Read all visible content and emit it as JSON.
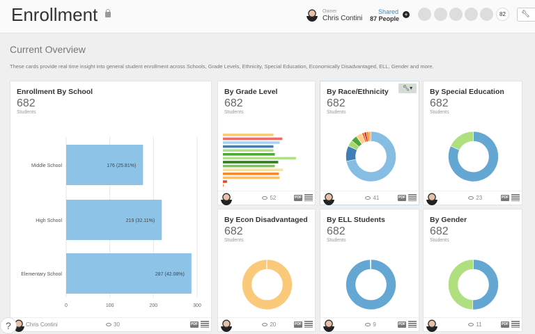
{
  "header": {
    "title": "Enrollment",
    "owner_label": "Owner",
    "owner_name": "Chris Contini",
    "shared_label": "Shared",
    "shared_count": "87 People",
    "member_count": "82",
    "tools_icon": "wrench-icon"
  },
  "section": {
    "title": "Current Overview",
    "description": "These cards provide real time insight into general student enrollment across Schools, Grade Levels, Ethnicity, Special Education, Economically Disadvantaged, ELL, Gender and more."
  },
  "cards": [
    {
      "title": "Enrollment By School",
      "count": "682",
      "unit": "Students",
      "author": "Chris Contini",
      "views": "30"
    },
    {
      "title": "By Grade Level",
      "count": "682",
      "unit": "Students",
      "views": "52"
    },
    {
      "title": "By Race/Ethnicity",
      "count": "682",
      "unit": "Students",
      "views": "41"
    },
    {
      "title": "By Special Education",
      "count": "682",
      "unit": "Students",
      "views": "23"
    },
    {
      "title": "By Econ Disadvantaged",
      "count": "682",
      "unit": "Students",
      "views": "20"
    },
    {
      "title": "By ELL Students",
      "count": "682",
      "unit": "Students",
      "views": "9"
    },
    {
      "title": "By Gender",
      "count": "682",
      "unit": "Students",
      "views": "11"
    }
  ],
  "pdf_label": "PDF",
  "help_label": "?",
  "chart_data": [
    {
      "type": "bar",
      "orientation": "horizontal",
      "categories": [
        "Middle School",
        "High School",
        "Elementary School"
      ],
      "values": [
        176,
        219,
        287
      ],
      "data_labels": [
        "176  (25.81%)",
        "219  (32.11%)",
        "287  (42.08%)"
      ],
      "xlim": [
        0,
        300
      ],
      "xticks": [
        "0",
        "100",
        "200",
        "300"
      ],
      "color": "#8ec3e8",
      "grid": true
    },
    {
      "type": "bar",
      "orientation": "horizontal",
      "values": [
        74,
        87,
        83,
        74,
        74,
        76,
        107,
        81,
        76,
        88,
        82,
        83,
        6,
        1
      ],
      "colors": [
        "#f9c97a",
        "#ef6b6b",
        "#a9d3f2",
        "#3e7fb8",
        "#b2df8a",
        "#4ea83a",
        "#b2df8a",
        "#2e7d1e",
        "#7cc55a",
        "#fbe29a",
        "#f58a2a",
        "#fbbf70",
        "#e24a26",
        "#f58a2a"
      ]
    },
    {
      "type": "pie",
      "donut": true,
      "values": [
        72,
        10,
        4,
        4,
        4,
        1.5,
        1.5,
        1.5,
        1.5
      ],
      "colors": [
        "#86bde3",
        "#3e7fb8",
        "#a6d96a",
        "#4ea83a",
        "#fdd18a",
        "#ef6b3a",
        "#d7301f",
        "#f58a2a",
        "#fdae61"
      ]
    },
    {
      "type": "pie",
      "donut": true,
      "values": [
        82,
        18
      ],
      "colors": [
        "#65a7d3",
        "#b0df80"
      ]
    },
    {
      "type": "pie",
      "donut": true,
      "values": [
        99.5,
        0.5
      ],
      "colors": [
        "#fbc97a",
        "#9e8cc8"
      ]
    },
    {
      "type": "pie",
      "donut": true,
      "values": [
        99.5,
        0.5
      ],
      "colors": [
        "#65a7d3",
        "#d0e4f2"
      ]
    },
    {
      "type": "pie",
      "donut": true,
      "values": [
        50.5,
        49.5
      ],
      "colors": [
        "#65a7d3",
        "#b0df80"
      ]
    }
  ]
}
